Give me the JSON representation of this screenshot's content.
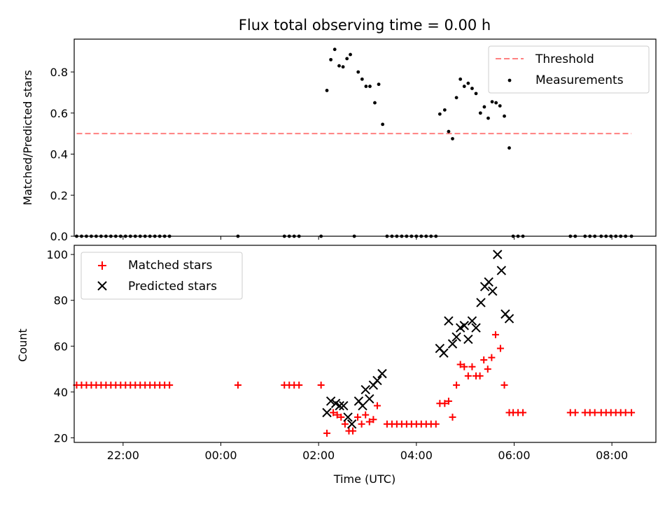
{
  "chart_data": [
    {
      "type": "scatter",
      "title": "Flux total observing time = 0.00 h",
      "xlabel": "",
      "ylabel": "Matched/Predicted stars",
      "xlim": [
        -3.0,
        8.9
      ],
      "ylim": [
        0,
        0.96
      ],
      "yticks": [
        0,
        0.2,
        0.4,
        0.6,
        0.8
      ],
      "ytick_labels": [
        "0.0",
        "0.2",
        "0.4",
        "0.6",
        "0.8"
      ],
      "legend_position": "top-right",
      "legend": [
        "Threshold",
        "Measurements"
      ],
      "threshold": {
        "name": "Threshold",
        "y": 0.5,
        "x_range": [
          -2.95,
          8.4
        ],
        "color": "#ff8080"
      },
      "series": [
        {
          "name": "Measurements",
          "color": "#000000",
          "points": [
            [
              -2.95,
              0
            ],
            [
              -2.85,
              0
            ],
            [
              -2.75,
              0
            ],
            [
              -2.65,
              0
            ],
            [
              -2.55,
              0
            ],
            [
              -2.45,
              0
            ],
            [
              -2.35,
              0
            ],
            [
              -2.25,
              0
            ],
            [
              -2.15,
              0
            ],
            [
              -2.05,
              0
            ],
            [
              -1.95,
              0
            ],
            [
              -1.85,
              0
            ],
            [
              -1.75,
              0
            ],
            [
              -1.65,
              0
            ],
            [
              -1.55,
              0
            ],
            [
              -1.45,
              0
            ],
            [
              -1.35,
              0
            ],
            [
              -1.25,
              0
            ],
            [
              -1.15,
              0
            ],
            [
              -1.05,
              0
            ],
            [
              0.35,
              0
            ],
            [
              1.3,
              0
            ],
            [
              1.4,
              0
            ],
            [
              1.5,
              0
            ],
            [
              1.6,
              0
            ],
            [
              2.05,
              0
            ],
            [
              2.17,
              0.71
            ],
            [
              2.25,
              0.86
            ],
            [
              2.33,
              0.91
            ],
            [
              2.42,
              0.83
            ],
            [
              2.5,
              0.825
            ],
            [
              2.58,
              0.865
            ],
            [
              2.65,
              0.885
            ],
            [
              2.73,
              0
            ],
            [
              2.81,
              0.8
            ],
            [
              2.89,
              0.765
            ],
            [
              2.97,
              0.73
            ],
            [
              3.05,
              0.73
            ],
            [
              3.15,
              0.65
            ],
            [
              3.23,
              0.74
            ],
            [
              3.31,
              0.545
            ],
            [
              3.4,
              0
            ],
            [
              3.5,
              0
            ],
            [
              3.6,
              0
            ],
            [
              3.7,
              0
            ],
            [
              3.8,
              0
            ],
            [
              3.9,
              0
            ],
            [
              4.0,
              0
            ],
            [
              4.1,
              0
            ],
            [
              4.2,
              0
            ],
            [
              4.3,
              0
            ],
            [
              4.4,
              0
            ],
            [
              4.48,
              0.595
            ],
            [
              4.58,
              0.615
            ],
            [
              4.66,
              0.51
            ],
            [
              4.74,
              0.475
            ],
            [
              4.82,
              0.675
            ],
            [
              4.9,
              0.765
            ],
            [
              4.98,
              0.73
            ],
            [
              5.06,
              0.745
            ],
            [
              5.14,
              0.72
            ],
            [
              5.22,
              0.695
            ],
            [
              5.31,
              0.6
            ],
            [
              5.39,
              0.63
            ],
            [
              5.47,
              0.575
            ],
            [
              5.55,
              0.655
            ],
            [
              5.63,
              0.65
            ],
            [
              5.71,
              0.635
            ],
            [
              5.8,
              0.585
            ],
            [
              5.9,
              0.43
            ],
            [
              5.98,
              0
            ],
            [
              6.08,
              0
            ],
            [
              6.18,
              0
            ],
            [
              7.15,
              0
            ],
            [
              7.25,
              0
            ],
            [
              7.45,
              0
            ],
            [
              7.55,
              0
            ],
            [
              7.65,
              0
            ],
            [
              7.78,
              0
            ],
            [
              7.88,
              0
            ],
            [
              7.98,
              0
            ],
            [
              8.08,
              0
            ],
            [
              8.18,
              0
            ],
            [
              8.28,
              0
            ],
            [
              8.4,
              0
            ]
          ]
        }
      ]
    },
    {
      "type": "scatter",
      "title": "",
      "xlabel": "Time (UTC)",
      "ylabel": "Count",
      "xlim": [
        -3.0,
        8.9
      ],
      "ylim": [
        18,
        104
      ],
      "yticks": [
        20,
        40,
        60,
        80,
        100
      ],
      "ytick_labels": [
        "20",
        "40",
        "60",
        "80",
        "100"
      ],
      "xticks": [
        -2,
        0,
        2,
        4,
        6,
        8
      ],
      "xtick_labels": [
        "22:00",
        "00:00",
        "02:00",
        "04:00",
        "06:00",
        "08:00"
      ],
      "legend_position": "top-left",
      "legend": [
        "Matched stars",
        "Predicted stars"
      ],
      "series": [
        {
          "name": "Matched stars",
          "marker": "plus",
          "color": "#ff0000",
          "points": [
            [
              -2.95,
              43
            ],
            [
              -2.85,
              43
            ],
            [
              -2.75,
              43
            ],
            [
              -2.65,
              43
            ],
            [
              -2.55,
              43
            ],
            [
              -2.45,
              43
            ],
            [
              -2.35,
              43
            ],
            [
              -2.25,
              43
            ],
            [
              -2.15,
              43
            ],
            [
              -2.05,
              43
            ],
            [
              -1.95,
              43
            ],
            [
              -1.85,
              43
            ],
            [
              -1.75,
              43
            ],
            [
              -1.65,
              43
            ],
            [
              -1.55,
              43
            ],
            [
              -1.45,
              43
            ],
            [
              -1.35,
              43
            ],
            [
              -1.25,
              43
            ],
            [
              -1.15,
              43
            ],
            [
              -1.05,
              43
            ],
            [
              0.35,
              43
            ],
            [
              1.3,
              43
            ],
            [
              1.4,
              43
            ],
            [
              1.5,
              43
            ],
            [
              1.6,
              43
            ],
            [
              2.05,
              43
            ],
            [
              2.17,
              22
            ],
            [
              2.3,
              31
            ],
            [
              2.38,
              30
            ],
            [
              2.46,
              29
            ],
            [
              2.54,
              26
            ],
            [
              2.62,
              23
            ],
            [
              2.7,
              23
            ],
            [
              2.8,
              29
            ],
            [
              2.88,
              26
            ],
            [
              2.96,
              30
            ],
            [
              3.04,
              27
            ],
            [
              3.12,
              28
            ],
            [
              3.2,
              34
            ],
            [
              3.4,
              26
            ],
            [
              3.5,
              26
            ],
            [
              3.6,
              26
            ],
            [
              3.7,
              26
            ],
            [
              3.8,
              26
            ],
            [
              3.9,
              26
            ],
            [
              4.0,
              26
            ],
            [
              4.1,
              26
            ],
            [
              4.2,
              26
            ],
            [
              4.3,
              26
            ],
            [
              4.4,
              26
            ],
            [
              4.48,
              35
            ],
            [
              4.58,
              35
            ],
            [
              4.66,
              36
            ],
            [
              4.74,
              29
            ],
            [
              4.82,
              43
            ],
            [
              4.9,
              52
            ],
            [
              4.98,
              51
            ],
            [
              5.06,
              47
            ],
            [
              5.14,
              51
            ],
            [
              5.22,
              47
            ],
            [
              5.3,
              47
            ],
            [
              5.38,
              54
            ],
            [
              5.46,
              50
            ],
            [
              5.54,
              55
            ],
            [
              5.62,
              65
            ],
            [
              5.72,
              59
            ],
            [
              5.8,
              43
            ],
            [
              5.9,
              31
            ],
            [
              5.98,
              31
            ],
            [
              6.08,
              31
            ],
            [
              6.18,
              31
            ],
            [
              7.15,
              31
            ],
            [
              7.25,
              31
            ],
            [
              7.45,
              31
            ],
            [
              7.55,
              31
            ],
            [
              7.65,
              31
            ],
            [
              7.78,
              31
            ],
            [
              7.88,
              31
            ],
            [
              7.98,
              31
            ],
            [
              8.08,
              31
            ],
            [
              8.18,
              31
            ],
            [
              8.28,
              31
            ],
            [
              8.4,
              31
            ]
          ]
        },
        {
          "name": "Predicted stars",
          "marker": "x",
          "color": "#000000",
          "points": [
            [
              2.17,
              31
            ],
            [
              2.25,
              36
            ],
            [
              2.35,
              35
            ],
            [
              2.43,
              34
            ],
            [
              2.51,
              34
            ],
            [
              2.6,
              29
            ],
            [
              2.68,
              26
            ],
            [
              2.82,
              36
            ],
            [
              2.9,
              34
            ],
            [
              2.96,
              41
            ],
            [
              3.04,
              37
            ],
            [
              3.12,
              43
            ],
            [
              3.2,
              45
            ],
            [
              3.3,
              48
            ],
            [
              4.48,
              59
            ],
            [
              4.56,
              57
            ],
            [
              4.66,
              71
            ],
            [
              4.74,
              61
            ],
            [
              4.82,
              64
            ],
            [
              4.9,
              68
            ],
            [
              4.98,
              69
            ],
            [
              5.06,
              63
            ],
            [
              5.14,
              71
            ],
            [
              5.22,
              68
            ],
            [
              5.32,
              79
            ],
            [
              5.4,
              86
            ],
            [
              5.48,
              88
            ],
            [
              5.56,
              84
            ],
            [
              5.66,
              100
            ],
            [
              5.74,
              93
            ],
            [
              5.82,
              74
            ],
            [
              5.9,
              72
            ]
          ]
        }
      ]
    }
  ]
}
